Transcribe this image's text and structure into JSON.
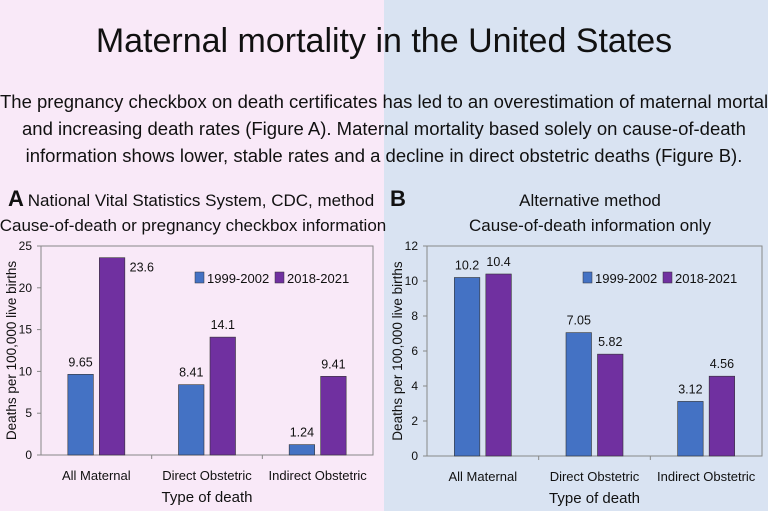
{
  "title": "Maternal mortality in the United States",
  "description_lines": [
    "The pregnancy checkbox on death certificates has led to an overestimation of maternal mortality",
    "and increasing death rates (Figure A). Maternal mortality based solely on cause-of-death",
    "information shows lower, stable rates and a decline in direct obstetric deaths (Figure B)."
  ],
  "colors": {
    "series1": "#4472c4",
    "series2": "#7030a0",
    "left_background": "#f9e9f8",
    "right_background": "#d9e3f2"
  },
  "chart_data": [
    {
      "type": "bar",
      "panel_label": "A",
      "title_lines": [
        "National Vital Statistics System, CDC, method",
        "Cause-of-death or pregnancy checkbox information"
      ],
      "categories": [
        "All Maternal",
        "Direct Obstetric",
        "Indirect Obstetric"
      ],
      "series": [
        {
          "name": "1999-2002",
          "values": [
            9.65,
            8.41,
            1.24
          ],
          "labels": [
            "9.65",
            "8.41",
            "1.24"
          ]
        },
        {
          "name": "2018-2021",
          "values": [
            23.6,
            14.1,
            9.41
          ],
          "labels": [
            "23.6",
            "14.1",
            "9.41"
          ]
        }
      ],
      "xlabel": "Type of death",
      "ylabel": "Deaths per 100,000 live births",
      "ylim": [
        0,
        25
      ],
      "yticks": [
        0,
        5,
        10,
        15,
        20,
        25
      ],
      "legend": "top-right",
      "grid": false
    },
    {
      "type": "bar",
      "panel_label": "B",
      "title_lines": [
        "Alternative method",
        "Cause-of-death information only"
      ],
      "categories": [
        "All Maternal",
        "Direct Obstetric",
        "Indirect Obstetric"
      ],
      "series": [
        {
          "name": "1999-2002",
          "values": [
            10.2,
            7.05,
            3.12
          ],
          "labels": [
            "10.2",
            "7.05",
            "3.12"
          ]
        },
        {
          "name": "2018-2021",
          "values": [
            10.4,
            5.82,
            4.56
          ],
          "labels": [
            "10.4",
            "5.82",
            "4.56"
          ]
        }
      ],
      "xlabel": "Type of death",
      "ylabel": "Deaths per 100,000 live births",
      "ylim": [
        0,
        12
      ],
      "yticks": [
        0,
        2,
        4,
        6,
        8,
        10,
        12
      ],
      "legend": "top-right",
      "grid": false
    }
  ]
}
